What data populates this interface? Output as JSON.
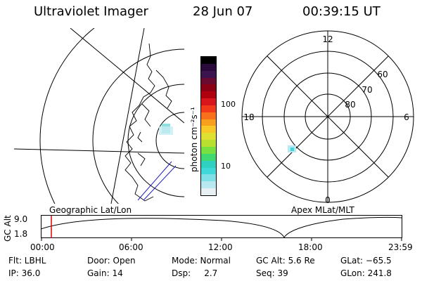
{
  "header": {
    "instrument": "Ultraviolet Imager",
    "date": "28 Jun 07",
    "time": "00:39:15 UT"
  },
  "geo_panel": {
    "label": "Geographic Lat/Lon"
  },
  "colorbar": {
    "unit_label": "photon cm⁻²s⁻¹",
    "ticks": [
      "100",
      "10"
    ],
    "colors": [
      "#000000",
      "#2a0a3a",
      "#3c1450",
      "#6a0a30",
      "#8c0016",
      "#b00010",
      "#d8141c",
      "#f03a1a",
      "#f8701c",
      "#f8a01e",
      "#f8c828",
      "#e0e030",
      "#b8e030",
      "#78e040",
      "#40d870",
      "#30d0c0",
      "#40d8d8",
      "#80e0e8",
      "#b8e8f0",
      "#e8f0f4"
    ]
  },
  "polar_panel": {
    "mlt_labels": {
      "top": "12",
      "right": "6",
      "bottom": "0",
      "left": "18"
    },
    "lat_labels": [
      "60",
      "70",
      "80"
    ]
  },
  "timeline": {
    "panel_label": "Apex MLat/MLT",
    "ylabel": "GC Alt",
    "y_ticks": [
      "9.0",
      "1.8"
    ],
    "x_ticks": [
      "00:00",
      "06:00",
      "12:00",
      "18:00",
      "23:59"
    ],
    "marker_time": "00:39"
  },
  "info": {
    "flt": "Flt: LBHL",
    "ip": "IP: 36.0",
    "door": "Door: Open",
    "gain": "Gain: 14",
    "mode": "Mode: Normal",
    "dsp": "Dsp:     2.7",
    "gc_alt": "GC Alt: 5.6 Re",
    "seq": "Seq: 39",
    "glat": "GLat: −65.5",
    "glon": "GLon: 241.8"
  }
}
